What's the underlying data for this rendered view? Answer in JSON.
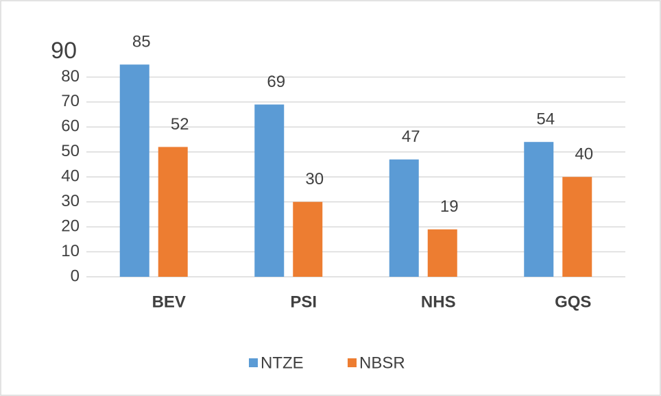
{
  "chart_data": {
    "type": "bar",
    "categories": [
      "BEV",
      "PSI",
      "NHS",
      "GQS"
    ],
    "series": [
      {
        "name": "NTZE",
        "color": "#5b9bd5",
        "values": [
          85,
          69,
          47,
          54
        ]
      },
      {
        "name": "NBSR",
        "color": "#ed7d31",
        "values": [
          52,
          30,
          19,
          40
        ]
      }
    ],
    "ylim": [
      0,
      90
    ],
    "yticks": [
      0,
      10,
      20,
      30,
      40,
      50,
      60,
      70,
      80,
      90
    ],
    "grid": true,
    "legend": "bottom"
  }
}
